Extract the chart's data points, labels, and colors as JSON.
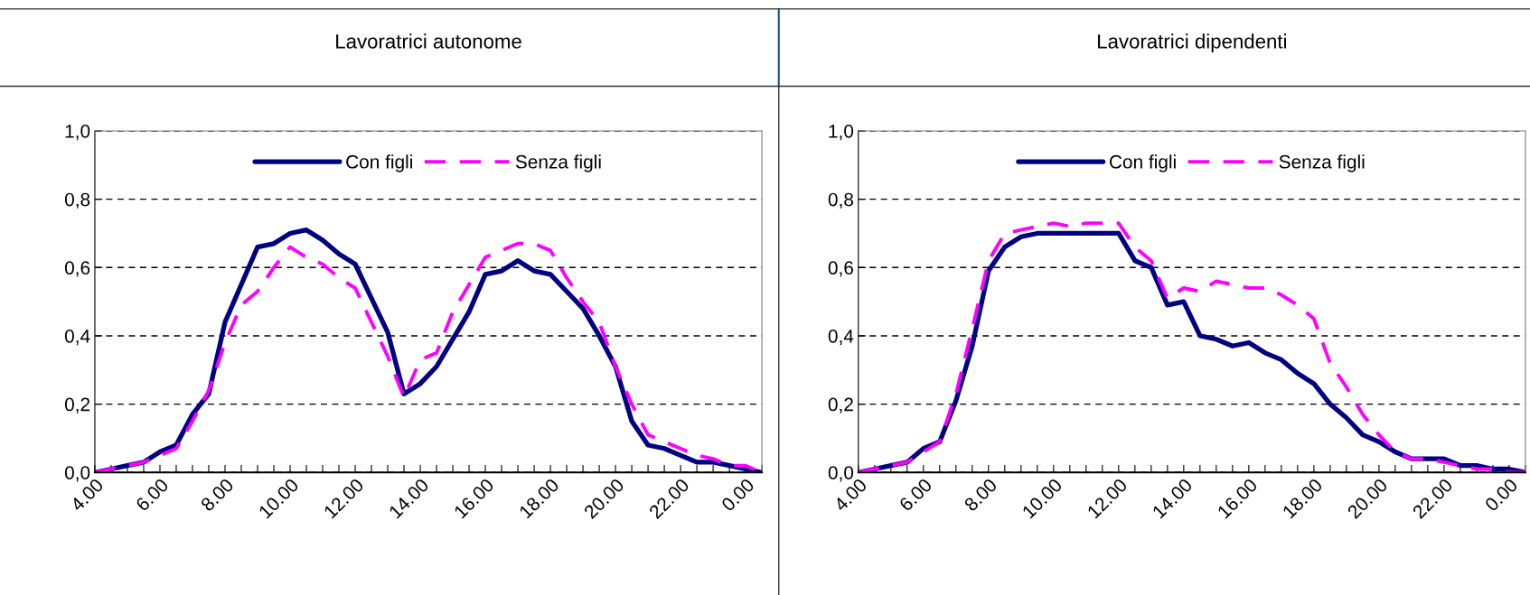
{
  "chart_data": [
    {
      "type": "line",
      "title": "Lavoratrici autonome",
      "categories": [
        "4.00",
        null,
        null,
        null,
        "6.00",
        null,
        null,
        null,
        "8.00",
        null,
        null,
        null,
        "10.00",
        null,
        null,
        null,
        "12.00",
        null,
        null,
        null,
        "14.00",
        null,
        null,
        null,
        "16.00",
        null,
        null,
        null,
        "18.00",
        null,
        null,
        null,
        "20.00",
        null,
        null,
        null,
        "22.00",
        null,
        null,
        null,
        "0.00",
        null
      ],
      "series": [
        {
          "name": "Con figli",
          "color": "#000080",
          "line_style": "solid",
          "values": [
            0.0,
            0.01,
            0.02,
            0.03,
            0.06,
            0.08,
            0.17,
            0.23,
            0.44,
            0.55,
            0.66,
            0.67,
            0.7,
            0.71,
            0.68,
            0.64,
            0.61,
            0.51,
            0.41,
            0.23,
            0.26,
            0.31,
            0.39,
            0.47,
            0.58,
            0.59,
            0.62,
            0.59,
            0.58,
            0.53,
            0.48,
            0.4,
            0.31,
            0.15,
            0.08,
            0.07,
            0.05,
            0.03,
            0.03,
            0.02,
            0.01,
            0.0
          ]
        },
        {
          "name": "Senza figli",
          "color": "#ff00ff",
          "line_style": "dashed",
          "values": [
            0.0,
            0.01,
            0.02,
            0.03,
            0.05,
            0.07,
            0.15,
            0.24,
            0.38,
            0.49,
            0.53,
            0.6,
            0.66,
            0.63,
            0.61,
            0.57,
            0.54,
            0.44,
            0.34,
            0.22,
            0.33,
            0.35,
            0.47,
            0.55,
            0.63,
            0.65,
            0.67,
            0.67,
            0.65,
            0.57,
            0.5,
            0.44,
            0.31,
            0.2,
            0.11,
            0.09,
            0.07,
            0.05,
            0.04,
            0.02,
            0.02,
            0.0
          ]
        }
      ],
      "ylim": [
        0,
        1
      ],
      "yticks": [
        {
          "value": 0,
          "label": "0,0"
        },
        {
          "value": 0.2,
          "label": "0,2"
        },
        {
          "value": 0.4,
          "label": "0,4"
        },
        {
          "value": 0.6,
          "label": "0,6"
        },
        {
          "value": 0.8,
          "label": "0,8"
        },
        {
          "value": 1,
          "label": "1,0"
        }
      ],
      "grid": "y",
      "legend": "top"
    },
    {
      "type": "line",
      "title": "Lavoratrici dipendenti",
      "categories": [
        "4.00",
        null,
        null,
        null,
        "6.00",
        null,
        null,
        null,
        "8.00",
        null,
        null,
        null,
        "10.00",
        null,
        null,
        null,
        "12.00",
        null,
        null,
        null,
        "14.00",
        null,
        null,
        null,
        "16.00",
        null,
        null,
        null,
        "18.00",
        null,
        null,
        null,
        "20.00",
        null,
        null,
        null,
        "22.00",
        null,
        null,
        null,
        "0.00",
        null
      ],
      "series": [
        {
          "name": "Con figli",
          "color": "#000080",
          "line_style": "solid",
          "values": [
            0.0,
            0.01,
            0.02,
            0.03,
            0.07,
            0.09,
            0.21,
            0.37,
            0.59,
            0.66,
            0.69,
            0.7,
            0.7,
            0.7,
            0.7,
            0.7,
            0.7,
            0.62,
            0.6,
            0.49,
            0.5,
            0.4,
            0.39,
            0.37,
            0.38,
            0.35,
            0.33,
            0.29,
            0.26,
            0.2,
            0.16,
            0.11,
            0.09,
            0.06,
            0.04,
            0.04,
            0.04,
            0.02,
            0.02,
            0.01,
            0.01,
            0.0
          ]
        },
        {
          "name": "Senza figli",
          "color": "#ff00ff",
          "line_style": "dashed",
          "values": [
            0.0,
            0.01,
            0.02,
            0.03,
            0.06,
            0.09,
            0.23,
            0.42,
            0.62,
            0.7,
            0.71,
            0.72,
            0.73,
            0.72,
            0.73,
            0.73,
            0.73,
            0.66,
            0.62,
            0.51,
            0.54,
            0.53,
            0.56,
            0.55,
            0.54,
            0.54,
            0.52,
            0.49,
            0.45,
            0.32,
            0.25,
            0.17,
            0.11,
            0.06,
            0.04,
            0.04,
            0.03,
            0.02,
            0.01,
            0.01,
            0.0,
            0.0
          ]
        }
      ],
      "ylim": [
        0,
        1
      ],
      "yticks": [
        {
          "value": 0,
          "label": "0,0"
        },
        {
          "value": 0.2,
          "label": "0,2"
        },
        {
          "value": 0.4,
          "label": "0,4"
        },
        {
          "value": 0.6,
          "label": "0,6"
        },
        {
          "value": 0.8,
          "label": "0,8"
        },
        {
          "value": 1,
          "label": "1,0"
        }
      ],
      "grid": "y",
      "legend": "top"
    }
  ]
}
